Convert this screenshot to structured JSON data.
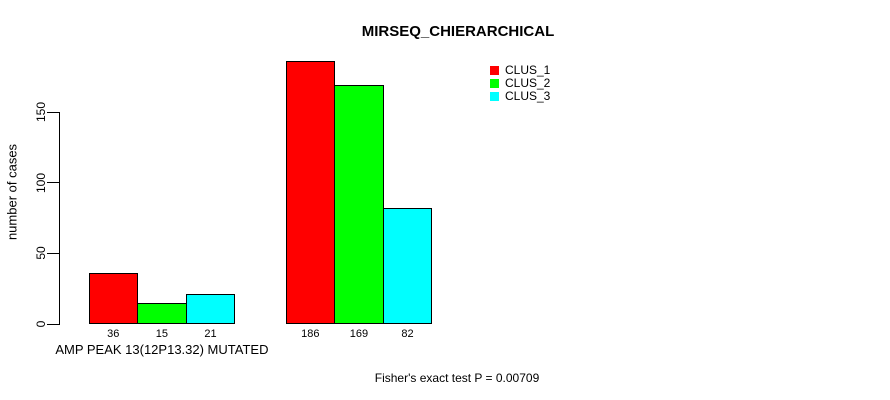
{
  "title": "MIRSEQ_CHIERARCHICAL",
  "footer": "Fisher's exact test P = 0.00709",
  "y_axis": {
    "label": "number of cases",
    "ticks": [
      0,
      50,
      100,
      150
    ]
  },
  "x_axis": {
    "group_labels": [
      "AMP PEAK 13(12P13.32) MUTATED",
      ""
    ]
  },
  "legend": {
    "position": "top-right",
    "entries": [
      {
        "label": "CLUS_1",
        "color": "#ff0000"
      },
      {
        "label": "CLUS_2",
        "color": "#00ff00"
      },
      {
        "label": "CLUS_3",
        "color": "#00ffff"
      }
    ]
  },
  "chart_data": {
    "type": "bar",
    "grouped": true,
    "title": "MIRSEQ_CHIERARCHICAL",
    "categories": [
      "AMP PEAK 13(12P13.32) MUTATED",
      ""
    ],
    "series": [
      {
        "name": "CLUS_1",
        "color": "#ff0000",
        "values": [
          36,
          186
        ]
      },
      {
        "name": "CLUS_2",
        "color": "#00ff00",
        "values": [
          15,
          169
        ]
      },
      {
        "name": "CLUS_3",
        "color": "#00ffff",
        "values": [
          21,
          82
        ]
      }
    ],
    "bar_value_labels": [
      [
        "36",
        "15",
        "21"
      ],
      [
        "186",
        "169",
        "82"
      ]
    ],
    "xlabel": "AMP PEAK 13(12P13.32) MUTATED",
    "ylabel": "number of cases",
    "yticks": [
      0,
      50,
      100,
      150
    ],
    "ylim": [
      0,
      186
    ],
    "grid": false,
    "legend_position": "top-right",
    "annotations": [
      "Fisher's exact test P = 0.00709"
    ]
  }
}
